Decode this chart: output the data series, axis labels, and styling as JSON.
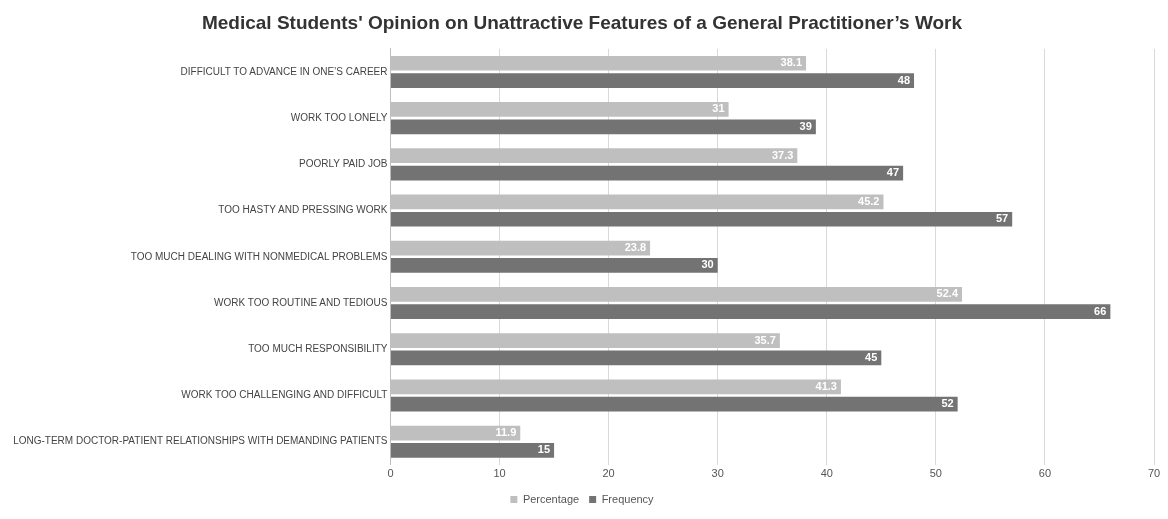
{
  "chart_data": {
    "type": "bar",
    "orientation": "horizontal",
    "title": "Medical Students' Opinion on Unattractive Features of a General Practitioner’s Work",
    "categories": [
      "DIFFICULT TO ADVANCE IN ONE’S CAREER",
      "WORK TOO LONELY",
      "POORLY PAID JOB",
      "TOO HASTY AND PRESSING WORK",
      "TOO MUCH DEALING WITH NONMEDICAL PROBLEMS",
      "WORK TOO ROUTINE AND TEDIOUS",
      "TOO MUCH RESPONSIBILITY",
      "WORK TOO CHALLENGING AND DIFFICULT",
      "LONG-TERM DOCTOR-PATIENT RELATIONSHIPS WITH DEMANDING PATIENTS"
    ],
    "series": [
      {
        "name": "Percentage",
        "color": "#bfbfbf",
        "values": [
          38.1,
          31,
          37.3,
          45.2,
          23.8,
          52.4,
          35.7,
          41.3,
          11.9
        ]
      },
      {
        "name": "Frequency",
        "color": "#737373",
        "values": [
          48,
          39,
          47,
          57,
          30,
          66,
          45,
          52,
          15
        ]
      }
    ],
    "xlim": [
      0,
      70
    ],
    "xticks": [
      0,
      10,
      20,
      30,
      40,
      50,
      60,
      70
    ],
    "grid": "x",
    "legend": "bottom",
    "data_labels": true
  }
}
